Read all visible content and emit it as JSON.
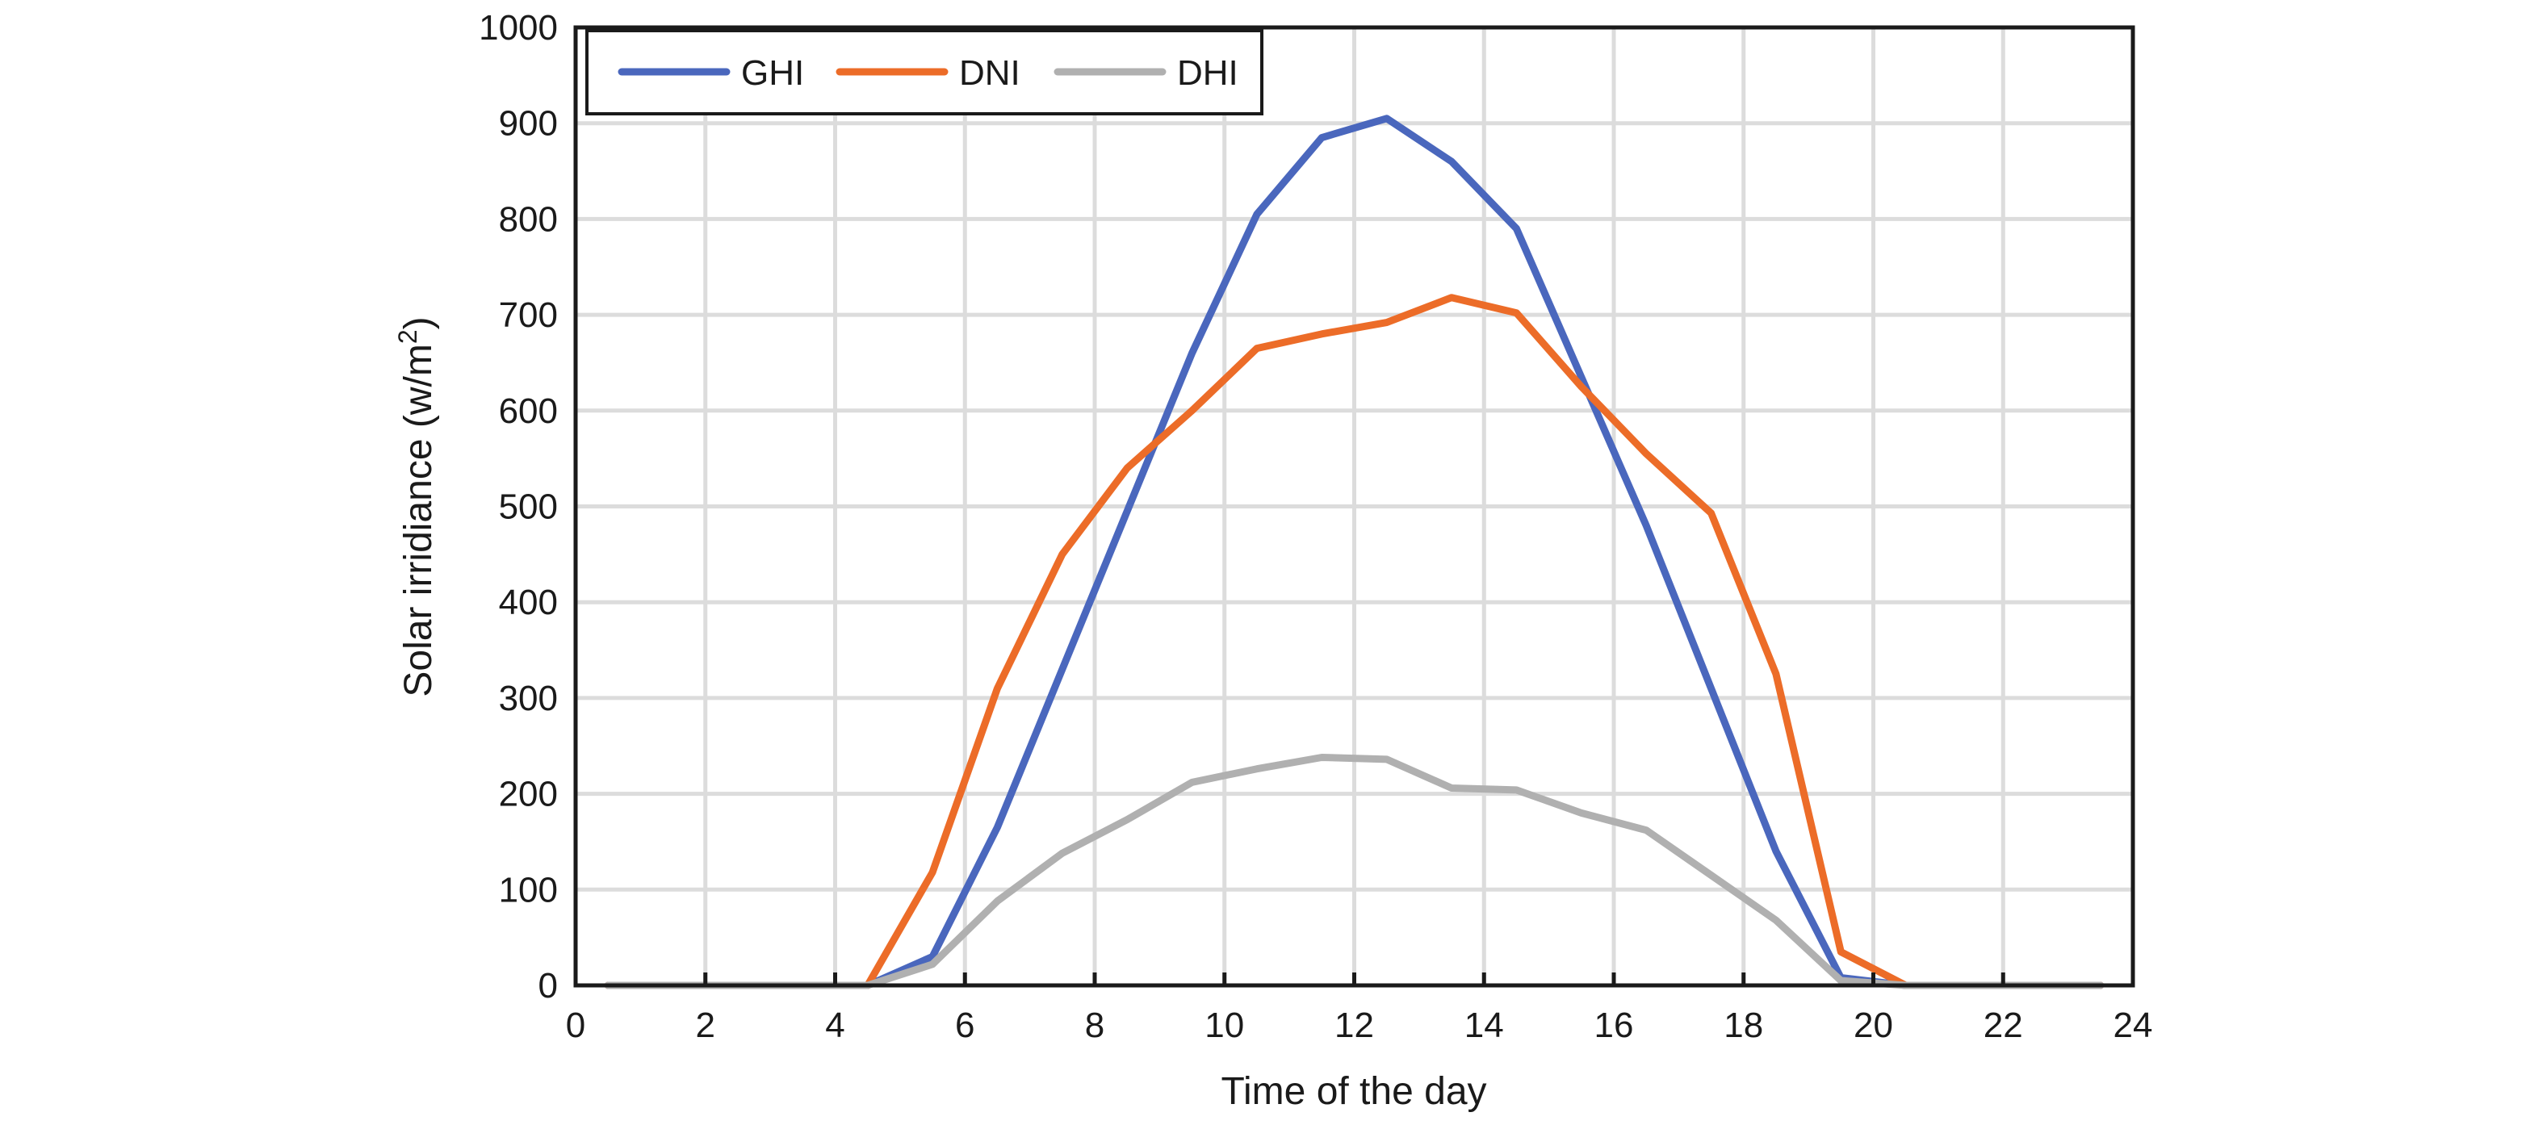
{
  "chart_data": {
    "type": "line",
    "title": "",
    "xlabel": "Time of the day",
    "ylabel": "Solar irridiance (w/m²)",
    "ylabel_main": "Solar irridiance (w/m",
    "ylabel_sup": "2",
    "ylabel_end": ")",
    "xlim": [
      0,
      24
    ],
    "ylim": [
      0,
      1000
    ],
    "xticks": [
      0,
      2,
      4,
      6,
      8,
      10,
      12,
      14,
      16,
      18,
      20,
      22,
      24
    ],
    "yticks": [
      0,
      100,
      200,
      300,
      400,
      500,
      600,
      700,
      800,
      900,
      1000
    ],
    "grid": true,
    "legend_position": "top-left",
    "x": [
      0.5,
      1.5,
      2.5,
      3.5,
      4.5,
      5.5,
      6.5,
      7.5,
      8.5,
      9.5,
      10.5,
      11.5,
      12.5,
      13.5,
      14.5,
      15.5,
      16.5,
      17.5,
      18.5,
      19.5,
      20.5,
      21.5,
      22.5,
      23.5
    ],
    "series": [
      {
        "name": "GHI",
        "color": "#4a67bd",
        "values": [
          0,
          0,
          0,
          0,
          0,
          30,
          165,
          330,
          495,
          660,
          805,
          885,
          905,
          860,
          790,
          635,
          480,
          310,
          140,
          8,
          0,
          0,
          0,
          0
        ]
      },
      {
        "name": "DNI",
        "color": "#ec6c28",
        "values": [
          0,
          0,
          0,
          0,
          0,
          118,
          310,
          450,
          540,
          600,
          665,
          680,
          692,
          718,
          702,
          625,
          555,
          493,
          325,
          35,
          0,
          0,
          0,
          0
        ]
      },
      {
        "name": "DHI",
        "color": "#b0b0b0",
        "values": [
          0,
          0,
          0,
          0,
          0,
          22,
          88,
          138,
          173,
          212,
          226,
          238,
          236,
          206,
          204,
          180,
          162,
          115,
          68,
          5,
          0,
          0,
          0,
          0
        ]
      }
    ]
  }
}
